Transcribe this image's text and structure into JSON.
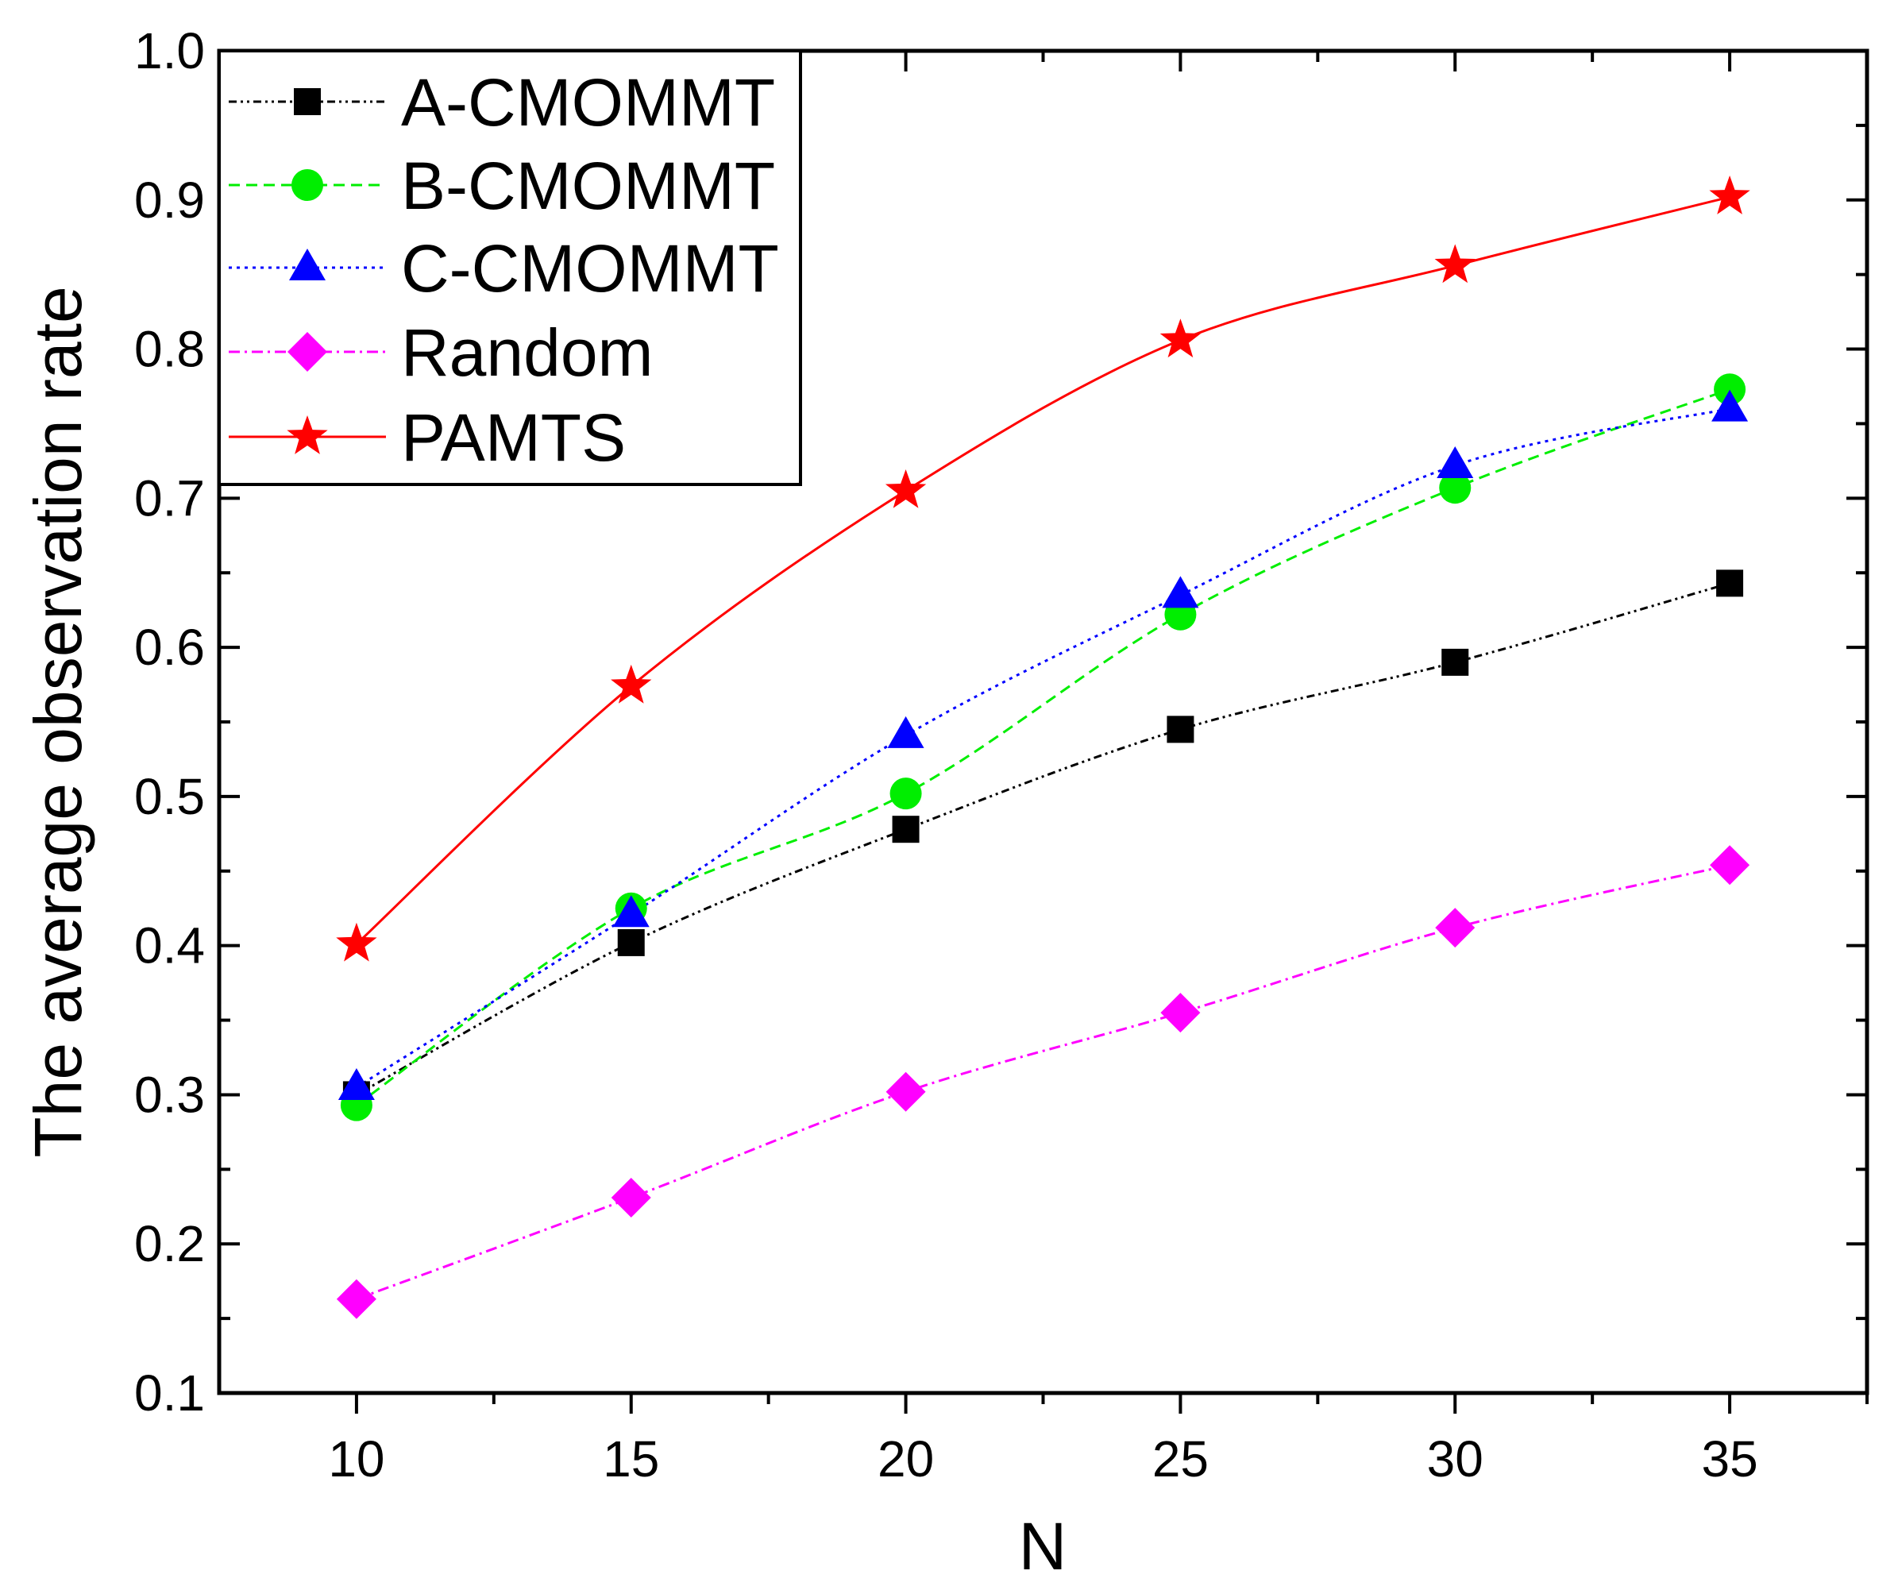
{
  "chart_data": {
    "type": "line",
    "title": "",
    "xlabel": "N",
    "ylabel": "The average observation rate",
    "x": [
      10,
      15,
      20,
      25,
      30,
      35
    ],
    "xlim": [
      7.5,
      37.5
    ],
    "ylim": [
      0.1,
      1.0
    ],
    "xticks": [
      "10",
      "15",
      "20",
      "25",
      "30",
      "35"
    ],
    "yticks": [
      "0.1",
      "0.2",
      "0.3",
      "0.4",
      "0.5",
      "0.6",
      "0.7",
      "0.8",
      "0.9",
      "1.0"
    ],
    "legend_position": "top-left",
    "grid": false,
    "series": [
      {
        "name": "A-CMOMMT",
        "values": [
          0.3,
          0.402,
          0.478,
          0.545,
          0.59,
          0.643
        ],
        "color": "#000000",
        "marker": "square",
        "dash": "dash-dot-dot"
      },
      {
        "name": "B-CMOMMT",
        "values": [
          0.293,
          0.425,
          0.502,
          0.622,
          0.707,
          0.773
        ],
        "color": "#00EE00",
        "marker": "circle",
        "dash": "dashed"
      },
      {
        "name": "C-CMOMMT",
        "values": [
          0.305,
          0.421,
          0.541,
          0.635,
          0.722,
          0.76
        ],
        "color": "#0000FF",
        "marker": "triangle",
        "dash": "dotted"
      },
      {
        "name": "Random",
        "values": [
          0.163,
          0.231,
          0.302,
          0.355,
          0.412,
          0.454
        ],
        "color": "#FF00FF",
        "marker": "diamond",
        "dash": "dash-dot"
      },
      {
        "name": "PAMTS",
        "values": [
          0.401,
          0.574,
          0.705,
          0.806,
          0.856,
          0.902
        ],
        "color": "#FF0000",
        "marker": "star",
        "dash": "solid"
      }
    ]
  }
}
